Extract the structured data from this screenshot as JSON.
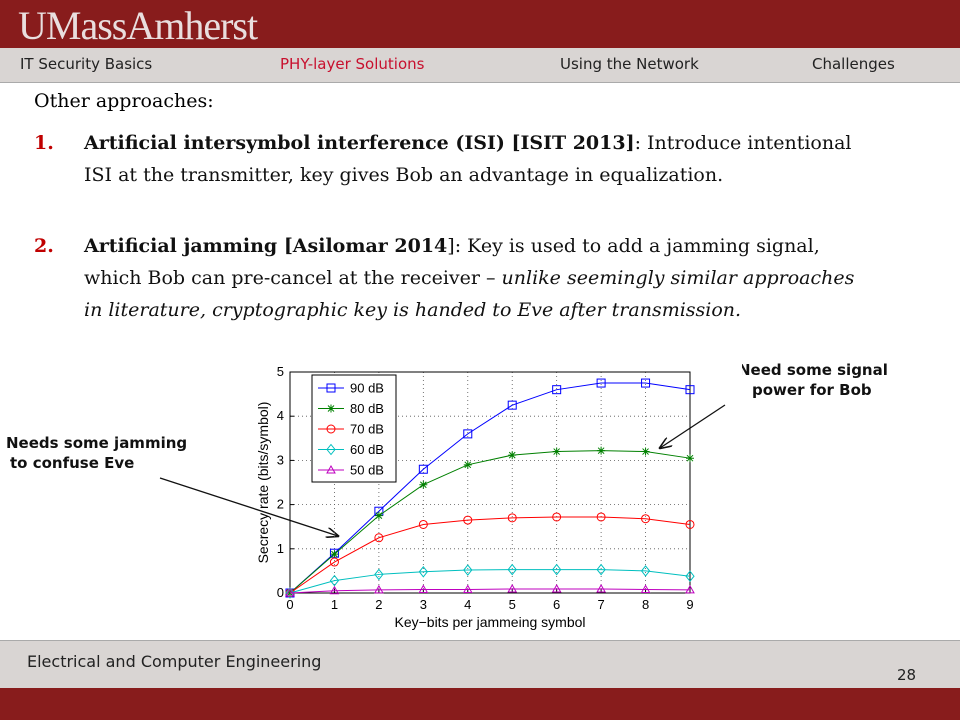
{
  "header": {
    "logo": "UMassAmherst",
    "nav": [
      "IT Security Basics",
      "PHY-layer Solutions",
      "Using the Network",
      "Challenges"
    ],
    "active": 1
  },
  "body": {
    "intro": "Other approaches:",
    "items": [
      {
        "number": "1.",
        "runs": [
          {
            "text": "Artificial intersymbol interference (ISI) [ISIT 2013]",
            "style": "bold"
          },
          {
            "text": ": Introduce intentional ISI at the transmitter, key gives Bob an advantage in equalization.",
            "style": "normal"
          }
        ]
      },
      {
        "number": "2.",
        "runs": [
          {
            "text": "Artificial jamming [Asilomar 2014",
            "style": "bold"
          },
          {
            "text": "]:  Key is used  to add a jamming signal, which Bob can pre-cancel at the receiver – ",
            "style": "normal"
          },
          {
            "text": "unlike seemingly similar approaches in literature, cryptographic key is handed to Eve after transmission.",
            "style": "italic"
          }
        ]
      }
    ]
  },
  "annotations": [
    {
      "lines": [
        "Need some signal",
        "power for Bob"
      ]
    },
    {
      "lines": [
        "Needs some jamming",
        "to confuse Eve"
      ]
    }
  ],
  "chart_data": {
    "type": "line",
    "xlabel": "Key−bits per jammeing symbol",
    "ylabel": "Secrecy rate (bits/symbol)",
    "x": [
      0,
      1,
      2,
      3,
      4,
      5,
      6,
      7,
      8,
      9
    ],
    "xlim": [
      0,
      9
    ],
    "xticks": [
      0,
      1,
      2,
      3,
      4,
      5,
      6,
      7,
      8,
      9
    ],
    "ylim": [
      0,
      5
    ],
    "yticks": [
      0,
      1,
      2,
      3,
      4,
      5
    ],
    "grid": true,
    "legend": "upper left",
    "series": [
      {
        "name": "90 dB",
        "color": "#0000ff",
        "marker": "square",
        "values": [
          0,
          0.9,
          1.85,
          2.8,
          3.6,
          4.25,
          4.6,
          4.75,
          4.75,
          4.6
        ]
      },
      {
        "name": "80 dB",
        "color": "#008000",
        "marker": "star",
        "values": [
          0,
          0.88,
          1.75,
          2.45,
          2.9,
          3.12,
          3.2,
          3.22,
          3.2,
          3.05
        ]
      },
      {
        "name": "70 dB",
        "color": "#ff0000",
        "marker": "circle",
        "values": [
          0,
          0.7,
          1.25,
          1.55,
          1.65,
          1.7,
          1.72,
          1.72,
          1.68,
          1.55
        ]
      },
      {
        "name": "60 dB",
        "color": "#00bfbf",
        "marker": "diamond",
        "values": [
          0,
          0.28,
          0.42,
          0.48,
          0.52,
          0.53,
          0.53,
          0.53,
          0.5,
          0.38
        ]
      },
      {
        "name": "50 dB",
        "color": "#bf00bf",
        "marker": "triangle",
        "values": [
          0,
          0.05,
          0.07,
          0.08,
          0.08,
          0.09,
          0.09,
          0.09,
          0.08,
          0.07
        ]
      }
    ]
  },
  "footer": {
    "department": "Electrical and Computer Engineering",
    "page": "28"
  }
}
